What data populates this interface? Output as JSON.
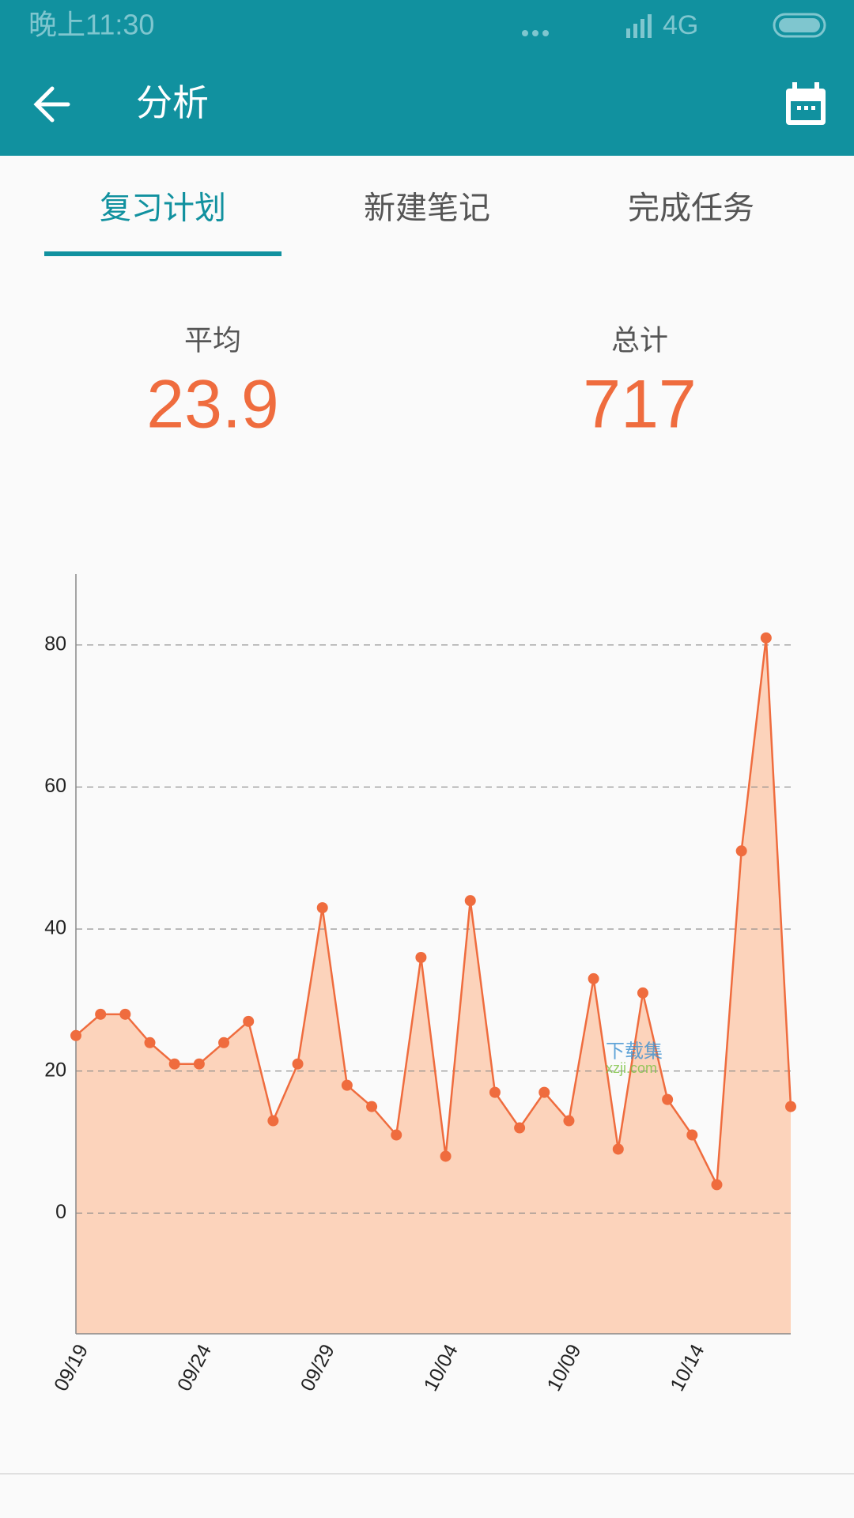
{
  "status_bar": {
    "time": "晚上11:30",
    "network": "4G"
  },
  "app_bar": {
    "title": "分析"
  },
  "tabs": [
    "复习计划",
    "新建笔记",
    "完成任务"
  ],
  "selected_tab": 0,
  "stats": [
    {
      "label": "平均",
      "value": 23.9
    },
    {
      "label": "总计",
      "value": 717
    }
  ],
  "watermark": {
    "text": "下载集",
    "url": "xzji.com"
  },
  "chart_data": {
    "type": "line",
    "categories": [
      "09/19",
      null,
      null,
      null,
      null,
      "09/24",
      null,
      null,
      null,
      null,
      "09/29",
      null,
      null,
      null,
      null,
      "10/04",
      null,
      null,
      null,
      null,
      "10/09",
      null,
      null,
      null,
      null,
      "10/14",
      null,
      null,
      null,
      null
    ],
    "series": [
      {
        "color": "#ef6c3e",
        "fill": "#fcd3bb",
        "values": [
          25,
          28,
          28,
          24,
          21,
          21,
          24,
          27,
          13,
          21,
          43,
          18,
          15,
          11,
          36,
          8,
          44,
          17,
          12,
          17,
          13,
          33,
          9,
          31,
          16,
          11,
          4,
          51,
          81,
          15
        ]
      }
    ],
    "ylim": [
      -17,
      90
    ],
    "yticks": [
      0,
      20,
      40,
      60,
      80
    ],
    "grid": true
  }
}
